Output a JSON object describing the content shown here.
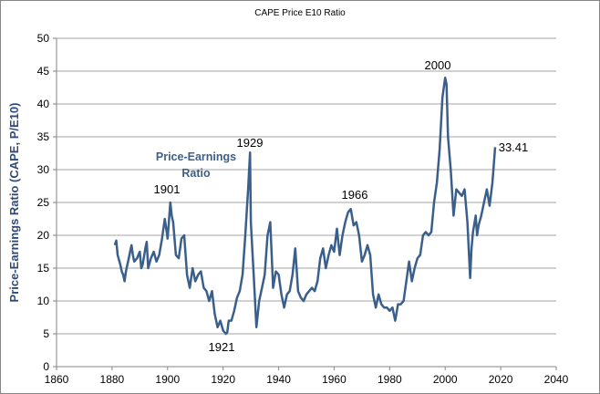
{
  "chart_data": {
    "type": "line",
    "title": "CAPE Price E10 Ratio",
    "ylabel": "Price-Earnings Ratio (CAPE, P/E10)",
    "xlim": [
      1860,
      2040
    ],
    "xticks": [
      1860,
      1880,
      1900,
      1920,
      1940,
      1960,
      1980,
      2000,
      2020,
      2040
    ],
    "ylim": [
      0,
      50
    ],
    "yticks": [
      0,
      5,
      10,
      15,
      20,
      25,
      30,
      35,
      40,
      45,
      50
    ],
    "grid": true,
    "annotations": [
      "1901",
      "1929",
      "1921",
      "1966",
      "2000",
      "33.41"
    ],
    "x": [
      1881,
      1881.5,
      1882,
      1883,
      1883.5,
      1884,
      1884.5,
      1885,
      1886,
      1887,
      1887.5,
      1888,
      1889,
      1890,
      1890.5,
      1891,
      1892,
      1892.5,
      1893,
      1894,
      1895,
      1896,
      1897,
      1898,
      1899,
      1899.5,
      1900,
      1901,
      1901.5,
      1902,
      1903,
      1904,
      1905,
      1906,
      1907,
      1908,
      1909,
      1910,
      1911,
      1912,
      1913,
      1914,
      1915,
      1916,
      1917,
      1918,
      1919,
      1920,
      1921,
      1921.5,
      1922,
      1923,
      1924,
      1925,
      1926,
      1927,
      1928,
      1929,
      1929.7,
      1930,
      1931,
      1932,
      1933,
      1934,
      1935,
      1936,
      1937,
      1938,
      1939,
      1940,
      1941,
      1942,
      1943,
      1944,
      1945,
      1946,
      1947,
      1948,
      1949,
      1950,
      1951,
      1952,
      1953,
      1954,
      1955,
      1956,
      1957,
      1958,
      1959,
      1960,
      1961,
      1962,
      1963,
      1964,
      1965,
      1966,
      1967,
      1968,
      1969,
      1970,
      1971,
      1972,
      1973,
      1974,
      1975,
      1976,
      1977,
      1978,
      1979,
      1980,
      1981,
      1982,
      1983,
      1984,
      1985,
      1986,
      1987,
      1988,
      1989,
      1990,
      1991,
      1992,
      1993,
      1994,
      1995,
      1996,
      1997,
      1998,
      1999,
      2000,
      2000.5,
      2001,
      2002,
      2003,
      2004,
      2005,
      2006,
      2007,
      2008,
      2009,
      2009.5,
      2010,
      2011,
      2011.5,
      2012,
      2013,
      2014,
      2015,
      2016,
      2017,
      2018
    ],
    "series": [
      {
        "name": "Price-Earnings Ratio",
        "color": "#3a5f8b",
        "values": [
          18.5,
          19.2,
          17,
          15.5,
          14.5,
          14,
          13,
          14.5,
          16.5,
          18.5,
          17,
          16,
          16.5,
          17.5,
          15,
          15.5,
          18,
          19,
          15,
          16.5,
          17.5,
          16,
          17,
          19.5,
          22.5,
          21,
          19.5,
          25,
          23,
          22,
          17,
          16.5,
          19.5,
          20,
          14,
          12,
          15,
          13,
          14,
          14.5,
          12,
          11.5,
          10,
          11.5,
          8,
          6,
          7,
          5.5,
          5,
          5.2,
          7,
          7,
          8.5,
          10.5,
          11.5,
          14,
          20,
          27,
          32.6,
          22,
          14,
          6,
          10,
          12,
          14,
          20,
          22,
          12,
          14.5,
          14,
          11,
          9,
          11,
          11.5,
          14,
          18,
          11.5,
          10.5,
          10,
          11,
          11.5,
          12,
          11.5,
          13,
          16.5,
          18,
          15,
          17,
          18.5,
          17.5,
          21,
          17,
          20,
          22,
          23.5,
          24,
          21.5,
          22,
          20,
          16,
          17,
          18.5,
          17,
          11,
          9,
          11,
          9.5,
          9,
          9,
          8.5,
          9,
          7,
          9.5,
          9.5,
          10,
          13,
          16,
          13,
          15,
          16.5,
          17,
          20,
          20.5,
          20,
          20.5,
          25,
          28,
          33,
          41,
          44,
          43,
          35,
          30,
          23,
          27,
          26.5,
          26,
          27,
          22,
          13.5,
          18,
          20.5,
          23,
          20,
          21.5,
          23,
          25,
          27,
          24.5,
          28,
          33.41
        ]
      }
    ]
  }
}
